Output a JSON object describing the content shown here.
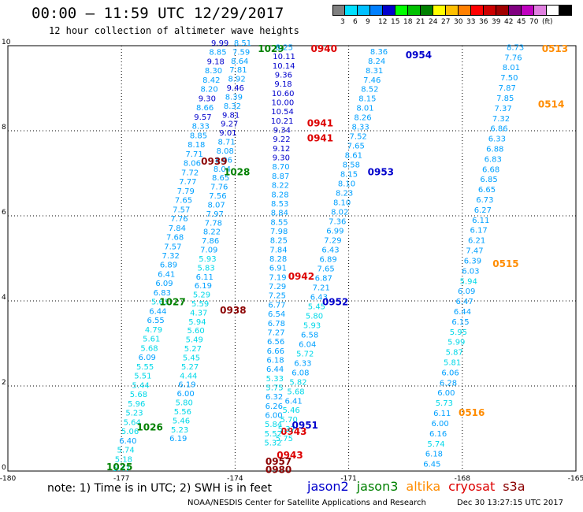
{
  "header": {
    "title": "00:00 – 11:59 UTC 12/29/2017",
    "subtitle": "12 hour collection of altimeter wave heights"
  },
  "legend": {
    "colors": [
      "#808080",
      "#00e0ff",
      "#00c0ff",
      "#0080ff",
      "#0000cc",
      "#00ff00",
      "#00c000",
      "#008000",
      "#ffff00",
      "#ffc000",
      "#ff8000",
      "#ff0000",
      "#cc0000",
      "#a00000",
      "#800080",
      "#c000c0",
      "#e080e0",
      "#ffffff",
      "#000000"
    ],
    "labels": [
      "3",
      "6",
      "9",
      "12",
      "15",
      "18",
      "21",
      "24",
      "27",
      "30",
      "33",
      "36",
      "39",
      "42",
      "45",
      "70",
      "(ft)"
    ]
  },
  "satellites": [
    {
      "name": "jason2",
      "color": "#0000cc"
    },
    {
      "name": "jason3",
      "color": "#008000"
    },
    {
      "name": "altika",
      "color": "#ff8c00"
    },
    {
      "name": "cryosat",
      "color": "#dd0000"
    },
    {
      "name": "s3a",
      "color": "#8b0000"
    }
  ],
  "footer": {
    "note": "note: 1) Time is in UTC; 2) SWH is in feet",
    "credits": "NOAA/NESDIS Center for Satellite Applications and Research",
    "timestamp": "Dec 30 13:27:15 UTC 2017"
  },
  "chart_data": {
    "type": "scatter",
    "xlim": [
      -180,
      -165
    ],
    "ylim": [
      0,
      10
    ],
    "xticks": [
      "-180",
      "-177",
      "-174",
      "-171",
      "-168",
      "-165"
    ],
    "yticks": [
      "0",
      "2",
      "4",
      "6",
      "8",
      "10"
    ],
    "grid": true,
    "passes": [
      {
        "label": "1025",
        "sat": "jason3",
        "lx": -177.4,
        "ly": 0.02,
        "x0": -177.0,
        "y0": 0.0,
        "x1": -174.4,
        "y1": 10.0,
        "values": [
          "5.47",
          "5.18",
          "5.74",
          "6.40",
          "5.06",
          "5.64",
          "5.23",
          "5.96",
          "5.68",
          "5.44",
          "5.51",
          "5.55",
          "6.09",
          "5.68",
          "5.61",
          "4.79",
          "6.55",
          "6.44",
          "5.63",
          "6.83",
          "6.09",
          "6.41",
          "6.89",
          "7.32",
          "7.57",
          "7.68",
          "7.84",
          "7.76",
          "7.57",
          "7.65",
          "7.79",
          "7.77",
          "7.72",
          "8.06",
          "7.71",
          "8.18",
          "8.85",
          "8.33",
          "9.57",
          "8.66",
          "9.30",
          "8.20",
          "8.42",
          "8.30",
          "9.18",
          "8.85",
          "9.99"
        ]
      },
      {
        "label": "1026",
        "sat": "jason3",
        "lx": -176.6,
        "ly": 0.95,
        "x0": 0,
        "y0": 0,
        "x1": 0,
        "y1": 0,
        "values": []
      },
      {
        "label": "1027",
        "sat": "jason3",
        "lx": -176.0,
        "ly": 3.9,
        "x0": -175.5,
        "y0": 0.7,
        "x1": -173.8,
        "y1": 10.0,
        "values": [
          "6.19",
          "5.23",
          "5.46",
          "5.56",
          "5.80",
          "6.00",
          "6.19",
          "4.44",
          "5.27",
          "5.45",
          "5.27",
          "5.49",
          "5.60",
          "5.94",
          "4.37",
          "5.59",
          "5.29",
          "6.19",
          "6.11",
          "5.83",
          "5.93",
          "7.09",
          "7.86",
          "8.22",
          "7.78",
          "7.97",
          "8.07",
          "7.56",
          "7.76",
          "8.65",
          "8.04",
          "8.06",
          "8.08",
          "8.71",
          "9.01",
          "9.27",
          "9.81",
          "8.32",
          "8.39",
          "9.46",
          "8.92",
          "7.81",
          "8.64",
          "7.59",
          "8.51"
        ]
      },
      {
        "label": "1028",
        "sat": "jason3",
        "lx": -174.3,
        "ly": 6.95,
        "x0": 0,
        "y0": 0,
        "x1": 0,
        "y1": 0,
        "values": []
      },
      {
        "label": "1029",
        "sat": "jason3",
        "lx": -173.4,
        "ly": 9.85,
        "x0": 0,
        "y0": 0,
        "x1": 0,
        "y1": 0,
        "values": []
      },
      {
        "label": "0938",
        "sat": "s3a",
        "lx": -174.4,
        "ly": 3.7,
        "x0": -173.0,
        "y0": 0.6,
        "x1": -172.7,
        "y1": 9.9,
        "values": [
          "5.32",
          "5.52",
          "5.84",
          "6.00",
          "6.26",
          "6.32",
          "5.75",
          "5.33",
          "6.44",
          "6.18",
          "6.66",
          "6.56",
          "7.27",
          "6.78",
          "6.54",
          "6.77",
          "7.25",
          "7.29",
          "7.19",
          "6.91",
          "8.28",
          "7.84",
          "8.25",
          "7.98",
          "8.55",
          "8.84",
          "8.53",
          "8.28",
          "8.22",
          "8.87",
          "8.70",
          "9.30",
          "9.12",
          "9.22",
          "9.34",
          "10.21",
          "10.54",
          "10.00",
          "10.60",
          "9.18",
          "9.36",
          "10.14",
          "10.11",
          "8.25"
        ]
      },
      {
        "label": "0939",
        "sat": "s3a",
        "lx": -174.9,
        "ly": 7.2,
        "x0": 0,
        "y0": 0,
        "x1": 0,
        "y1": 0,
        "values": []
      },
      {
        "label": "0940",
        "sat": "cryosat",
        "lx": -172.0,
        "ly": 9.85,
        "x0": 0,
        "y0": 0,
        "x1": 0,
        "y1": 0,
        "values": []
      },
      {
        "label": "0941",
        "sat": "cryosat",
        "lx": -172.1,
        "ly": 8.1,
        "x0": 0,
        "y0": 0,
        "x1": 0,
        "y1": 0,
        "values": []
      },
      {
        "label": "0941",
        "sat": "cryosat",
        "lx": -172.1,
        "ly": 7.75,
        "x0": 0,
        "y0": 0,
        "x1": 0,
        "y1": 0,
        "values": []
      },
      {
        "label": "0942",
        "sat": "cryosat",
        "lx": -172.6,
        "ly": 4.5,
        "x0": 0,
        "y0": 0,
        "x1": 0,
        "y1": 0,
        "values": []
      },
      {
        "label": "0943",
        "sat": "cryosat",
        "lx": -172.8,
        "ly": 0.85,
        "x0": 0,
        "y0": 0,
        "x1": 0,
        "y1": 0,
        "values": []
      },
      {
        "label": "0943",
        "sat": "cryosat",
        "lx": -172.9,
        "ly": 0.3,
        "x0": 0,
        "y0": 0,
        "x1": 0,
        "y1": 0,
        "values": []
      },
      {
        "label": "0957",
        "sat": "s3a",
        "lx": -173.2,
        "ly": 0.15,
        "x0": 0,
        "y0": 0,
        "x1": 0,
        "y1": 0,
        "values": []
      },
      {
        "label": "0980",
        "sat": "s3a",
        "lx": -173.2,
        "ly": -0.05,
        "x0": 0,
        "y0": 0,
        "x1": 0,
        "y1": 0,
        "values": []
      },
      {
        "label": "0951",
        "sat": "jason2",
        "lx": -172.5,
        "ly": 1.0,
        "x0": -172.7,
        "y0": 0.7,
        "x1": -170.2,
        "y1": 9.8,
        "values": [
          "5.75",
          "5.37",
          "5.70",
          "5.46",
          "6.41",
          "5.68",
          "5.82",
          "6.08",
          "6.33",
          "5.72",
          "6.04",
          "6.58",
          "5.93",
          "5.80",
          "5.45",
          "6.43",
          "7.21",
          "6.87",
          "7.65",
          "6.89",
          "6.43",
          "7.29",
          "6.99",
          "7.36",
          "8.02",
          "8.10",
          "8.23",
          "8.10",
          "8.15",
          "8.58",
          "8.61",
          "7.65",
          "7.52",
          "8.33",
          "8.26",
          "8.01",
          "8.15",
          "8.52",
          "7.46",
          "8.31",
          "8.24",
          "8.36"
        ]
      },
      {
        "label": "0952",
        "sat": "jason2",
        "lx": -171.7,
        "ly": 3.9,
        "x0": 0,
        "y0": 0,
        "x1": 0,
        "y1": 0,
        "values": []
      },
      {
        "label": "0953",
        "sat": "jason2",
        "lx": -170.5,
        "ly": 6.95,
        "x0": 0,
        "y0": 0,
        "x1": 0,
        "y1": 0,
        "values": []
      },
      {
        "label": "0954",
        "sat": "jason2",
        "lx": -169.5,
        "ly": 9.7,
        "x0": 0,
        "y0": 0,
        "x1": 0,
        "y1": 0,
        "values": []
      },
      {
        "label": "0513",
        "sat": "altika",
        "lx": -165.9,
        "ly": 9.85,
        "x0": -168.8,
        "y0": 0.1,
        "x1": -166.6,
        "y1": 9.9,
        "values": [
          "6.45",
          "6.18",
          "5.74",
          "6.16",
          "6.00",
          "6.11",
          "5.73",
          "6.00",
          "6.28",
          "6.06",
          "5.81",
          "5.87",
          "5.99",
          "5.95",
          "6.15",
          "6.44",
          "6.47",
          "6.09",
          "5.94",
          "6.03",
          "6.39",
          "7.47",
          "6.21",
          "6.17",
          "6.11",
          "6.27",
          "6.73",
          "6.65",
          "6.85",
          "6.68",
          "6.83",
          "6.88",
          "6.33",
          "6.86",
          "7.32",
          "7.37",
          "7.85",
          "7.87",
          "7.50",
          "8.01",
          "7.76",
          "8.73"
        ]
      },
      {
        "label": "0514",
        "sat": "altika",
        "lx": -166.0,
        "ly": 8.55,
        "x0": 0,
        "y0": 0,
        "x1": 0,
        "y1": 0,
        "values": []
      },
      {
        "label": "0515",
        "sat": "altika",
        "lx": -167.2,
        "ly": 4.8,
        "x0": 0,
        "y0": 0,
        "x1": 0,
        "y1": 0,
        "values": []
      },
      {
        "label": "0516",
        "sat": "altika",
        "lx": -168.1,
        "ly": 1.3,
        "x0": 0,
        "y0": 0,
        "x1": 0,
        "y1": 0,
        "values": []
      }
    ]
  }
}
